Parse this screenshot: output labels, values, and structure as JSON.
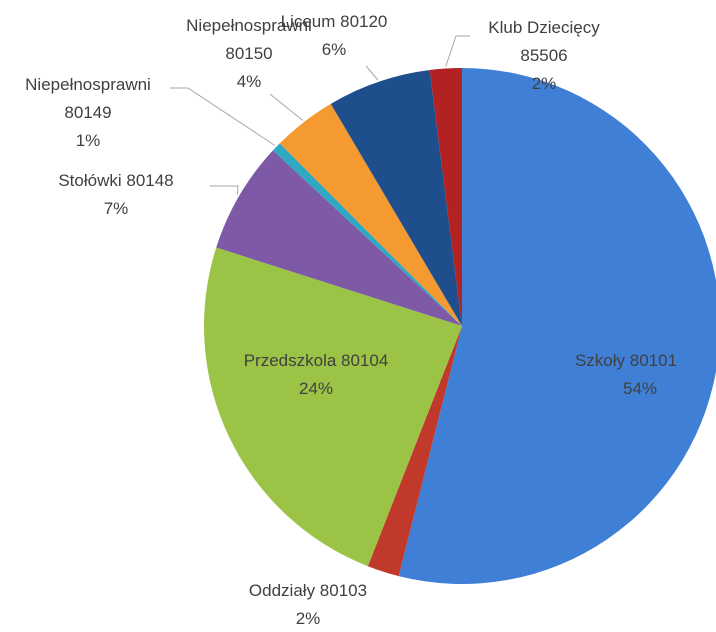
{
  "chart_data": {
    "type": "pie",
    "title": "",
    "slices": [
      {
        "label": "Szkoły 80101",
        "percent_label": "54%",
        "value": 54,
        "color": "#3f7fd6"
      },
      {
        "label": "Oddziały 80103",
        "percent_label": "2%",
        "value": 2,
        "color": "#c0392b"
      },
      {
        "label": "Przedszkola 80104",
        "percent_label": "24%",
        "value": 24,
        "color": "#9bc447"
      },
      {
        "label": "Stołówki 80148",
        "percent_label": "7%",
        "value": 7,
        "color": "#7e5aa6"
      },
      {
        "label": "Niepełnosprawni 80149",
        "label_lines": [
          "Niepełnosprawni",
          "80149"
        ],
        "percent_label": "1%",
        "value": 0.6,
        "color": "#2fa8c4"
      },
      {
        "label": "Niepełnosprawni 80150",
        "label_lines": [
          "Niepełnosprawni",
          "80150"
        ],
        "percent_label": "4%",
        "value": 4,
        "color": "#f59a30"
      },
      {
        "label": "Liceum 80120",
        "percent_label": "6%",
        "value": 6.5,
        "color": "#1f4e8c"
      },
      {
        "label": "Klub Dziecięcy 85506",
        "label_lines": [
          "Klub Dziecięcy",
          "85506"
        ],
        "percent_label": "2%",
        "value": 2,
        "color": "#b22222"
      }
    ],
    "legend": "none",
    "data_labels": "category name and percent"
  }
}
